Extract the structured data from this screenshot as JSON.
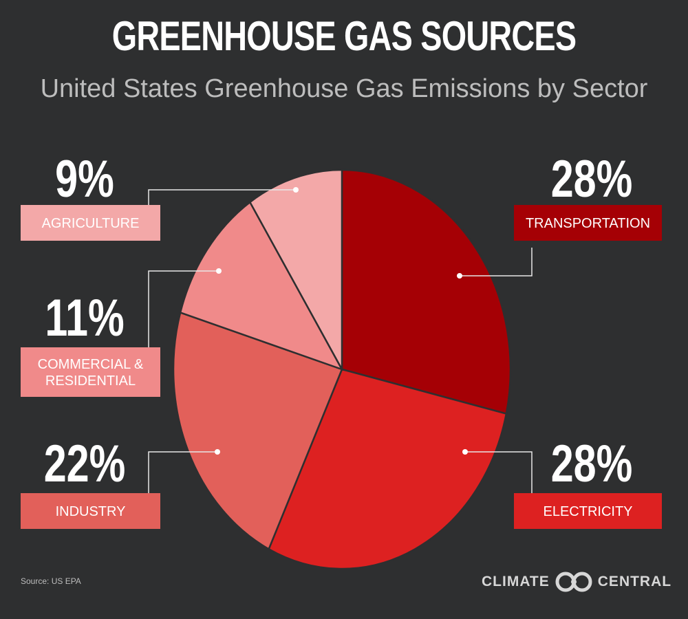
{
  "chart_data": {
    "type": "pie",
    "title": "GREENHOUSE GAS SOURCES",
    "subtitle": "United States Greenhouse Gas Emissions by Sector",
    "slices": [
      {
        "label": "TRANSPORTATION",
        "value": 28,
        "value_label": "28%",
        "color": "#a50005",
        "label_color": "#a50005"
      },
      {
        "label": "ELECTRICITY",
        "value": 28,
        "value_label": "28%",
        "color": "#dd2121",
        "label_color": "#dd2121"
      },
      {
        "label": "INDUSTRY",
        "value": 22,
        "value_label": "22%",
        "color": "#e2605a",
        "label_color": "#e2605a"
      },
      {
        "label": "COMMERCIAL & RESIDENTIAL",
        "label_lines": [
          "COMMERCIAL &",
          "RESIDENTIAL"
        ],
        "value": 11,
        "value_label": "11%",
        "color": "#f08a8a",
        "label_color": "#f08a8a"
      },
      {
        "label": "AGRICULTURE",
        "value": 9,
        "value_label": "9%",
        "color": "#f3a8a8",
        "label_color": "#f3a8a8"
      }
    ]
  },
  "footer": {
    "source": "Source: US EPA",
    "logo_left": "CLIMATE",
    "logo_right": "CENTRAL"
  },
  "background_color": "#2e2f30"
}
